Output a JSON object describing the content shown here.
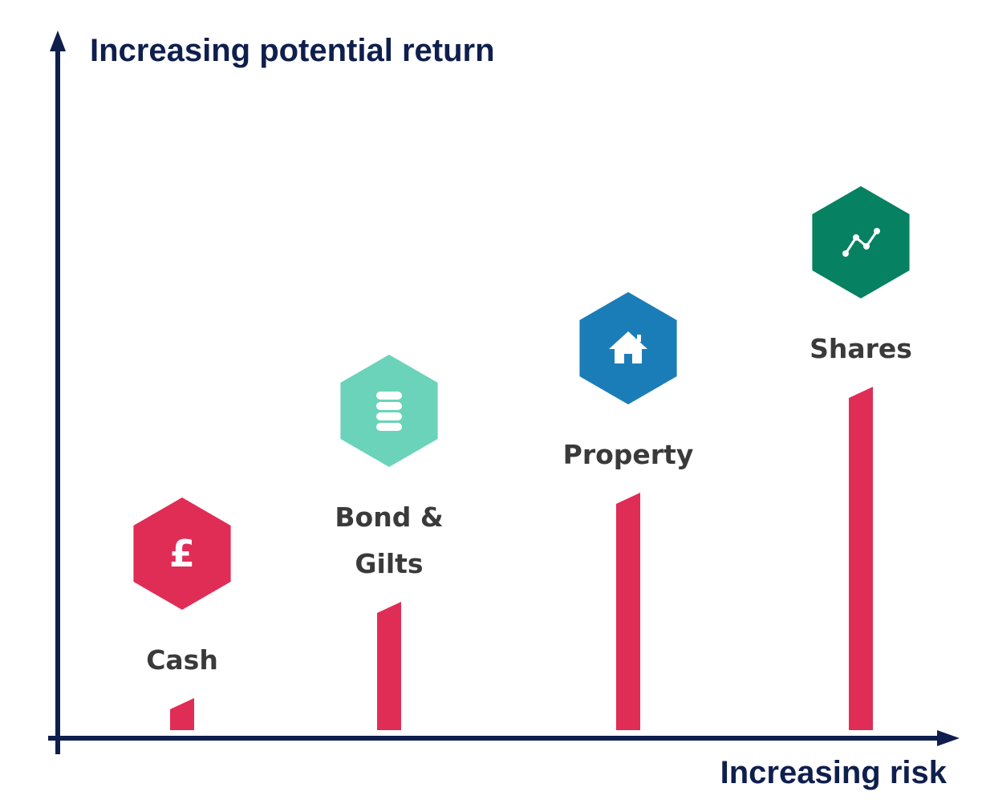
{
  "chart_data": {
    "type": "bar",
    "title": "",
    "ylabel": "Increasing potential return",
    "xlabel": "Increasing risk",
    "categories": [
      {
        "label": [
          "Cash"
        ],
        "icon": "pound-icon",
        "color": "#e02d56"
      },
      {
        "label": [
          "Bond &",
          "Gilts"
        ],
        "icon": "coin-stack-icon",
        "color": "#6ad3b9"
      },
      {
        "label": [
          "Property"
        ],
        "icon": "house-icon",
        "color": "#1b7db8"
      },
      {
        "label": [
          "Shares"
        ],
        "icon": "line-chart-icon",
        "color": "#068162"
      }
    ],
    "values": [
      1,
      4,
      7.4,
      10.7
    ],
    "ylim": [
      0,
      12
    ],
    "bar_color": "#e02d56",
    "axis_color": "#0f1f4d",
    "grid": false,
    "legend": "none"
  }
}
